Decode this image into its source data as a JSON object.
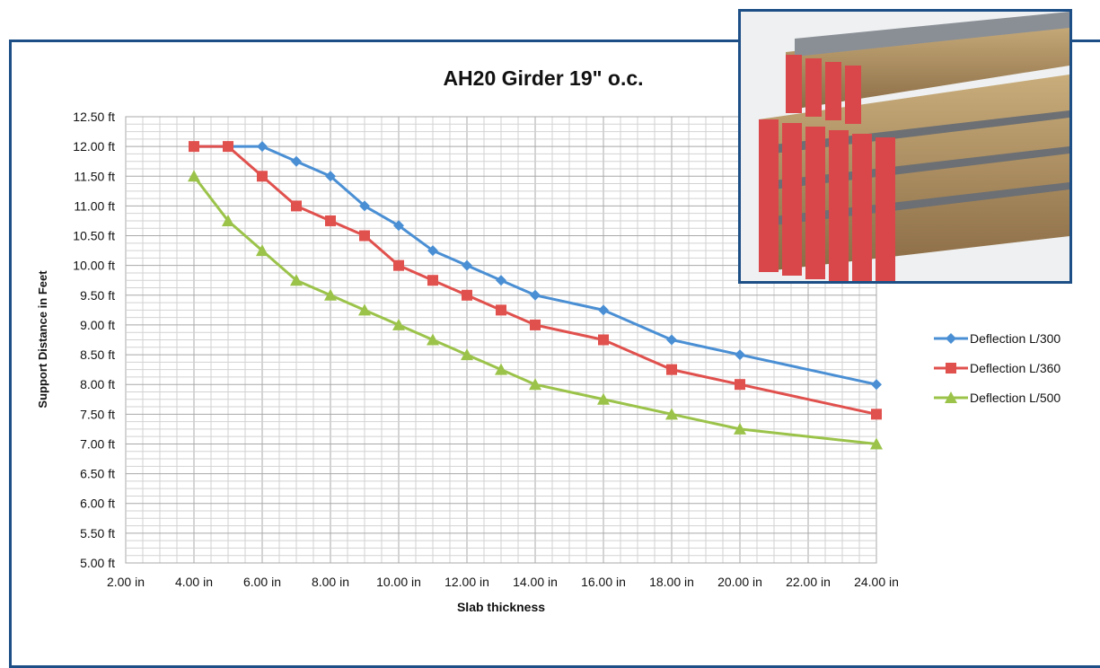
{
  "chart_data": {
    "type": "line",
    "title": "AH20 Girder 19\" o.c.",
    "xlabel": "Slab thickness",
    "ylabel": "Support Distance  in Feet",
    "x_unit": "in",
    "y_unit": "ft",
    "xlim": [
      2,
      24
    ],
    "ylim": [
      5,
      12.5
    ],
    "x_ticks": [
      "2.00 in",
      "4.00 in",
      "6.00 in",
      "8.00 in",
      "10.00 in",
      "12.00 in",
      "14.00 in",
      "16.00 in",
      "18.00 in",
      "20.00 in",
      "22.00 in",
      "24.00 in"
    ],
    "y_ticks": [
      "12.50 ft",
      "12.00 ft",
      "11.50 ft",
      "11.00 ft",
      "10.50 ft",
      "10.00 ft",
      "9.50 ft",
      "9.00 ft",
      "8.50 ft",
      "8.00 ft",
      "7.50 ft",
      "7.00 ft",
      "6.50 ft",
      "6.00 ft",
      "5.50 ft",
      "5.00 ft"
    ],
    "grid": true,
    "legend_position": "right",
    "series": [
      {
        "name": "Deflection L/300",
        "color": "#4a8fd4",
        "marker": "diamond",
        "x": [
          4,
          5,
          6,
          7,
          8,
          9,
          10,
          11,
          12,
          13,
          14,
          16,
          18,
          20,
          24
        ],
        "y": [
          12.0,
          12.0,
          12.0,
          11.75,
          11.5,
          11.0,
          10.67,
          10.25,
          10.0,
          9.75,
          9.5,
          9.25,
          8.75,
          8.5,
          8.0
        ]
      },
      {
        "name": "Deflection L/360",
        "color": "#e0504d",
        "marker": "square",
        "x": [
          4,
          5,
          6,
          7,
          8,
          9,
          10,
          11,
          12,
          13,
          14,
          16,
          18,
          20,
          24
        ],
        "y": [
          12.0,
          12.0,
          11.5,
          11.0,
          10.75,
          10.5,
          10.0,
          9.75,
          9.5,
          9.25,
          9.0,
          8.75,
          8.25,
          8.0,
          7.5
        ]
      },
      {
        "name": "Deflection L/500",
        "color": "#9bc34a",
        "marker": "triangle",
        "x": [
          4,
          5,
          6,
          7,
          8,
          9,
          10,
          11,
          12,
          13,
          14,
          16,
          18,
          20,
          24
        ],
        "y": [
          11.5,
          10.75,
          10.25,
          9.75,
          9.5,
          9.25,
          9.0,
          8.75,
          8.5,
          8.25,
          8.0,
          7.75,
          7.5,
          7.25,
          7.0
        ]
      }
    ]
  }
}
